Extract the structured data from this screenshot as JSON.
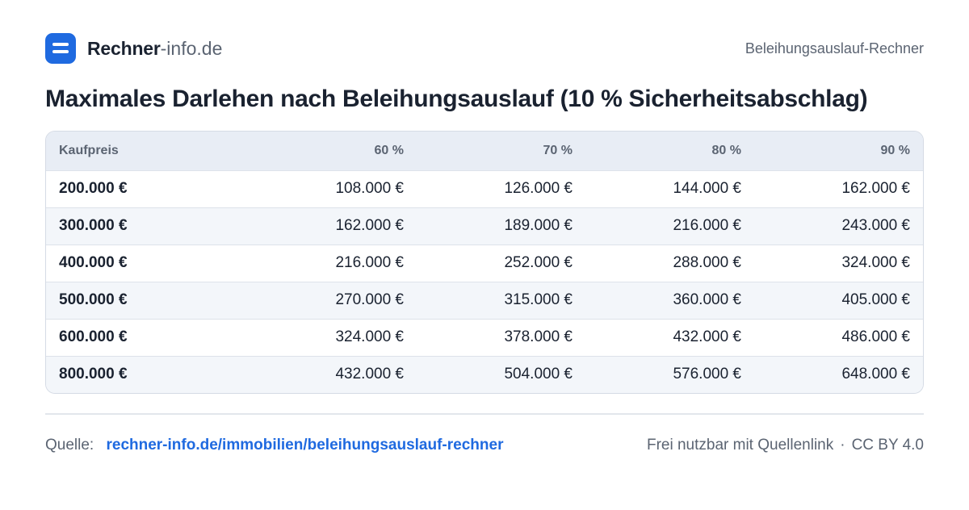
{
  "header": {
    "brand_name": "Rechner",
    "brand_domain": "-info.de",
    "right_label": "Beleihungsauslauf-Rechner",
    "logo_icon": "menu-icon",
    "accent_color": "#1f6ae0"
  },
  "title": "Maximales Darlehen nach Beleihungsauslauf (10 % Sicherheitsabschlag)",
  "table": {
    "headers": [
      "Kaufpreis",
      "60 %",
      "70 %",
      "80 %",
      "90 %"
    ],
    "rows": [
      [
        "200.000 €",
        "108.000 €",
        "126.000 €",
        "144.000 €",
        "162.000 €"
      ],
      [
        "300.000 €",
        "162.000 €",
        "189.000 €",
        "216.000 €",
        "243.000 €"
      ],
      [
        "400.000 €",
        "216.000 €",
        "252.000 €",
        "288.000 €",
        "324.000 €"
      ],
      [
        "500.000 €",
        "270.000 €",
        "315.000 €",
        "360.000 €",
        "405.000 €"
      ],
      [
        "600.000 €",
        "324.000 €",
        "378.000 €",
        "432.000 €",
        "486.000 €"
      ],
      [
        "800.000 €",
        "432.000 €",
        "504.000 €",
        "576.000 €",
        "648.000 €"
      ]
    ]
  },
  "footer": {
    "source_label": "Quelle:",
    "source_link": "rechner-info.de/immobilien/beleihungsauslauf-rechner",
    "license_text": "Frei nutzbar mit Quellenlink",
    "separator": "·",
    "license_name": "CC BY 4.0"
  }
}
